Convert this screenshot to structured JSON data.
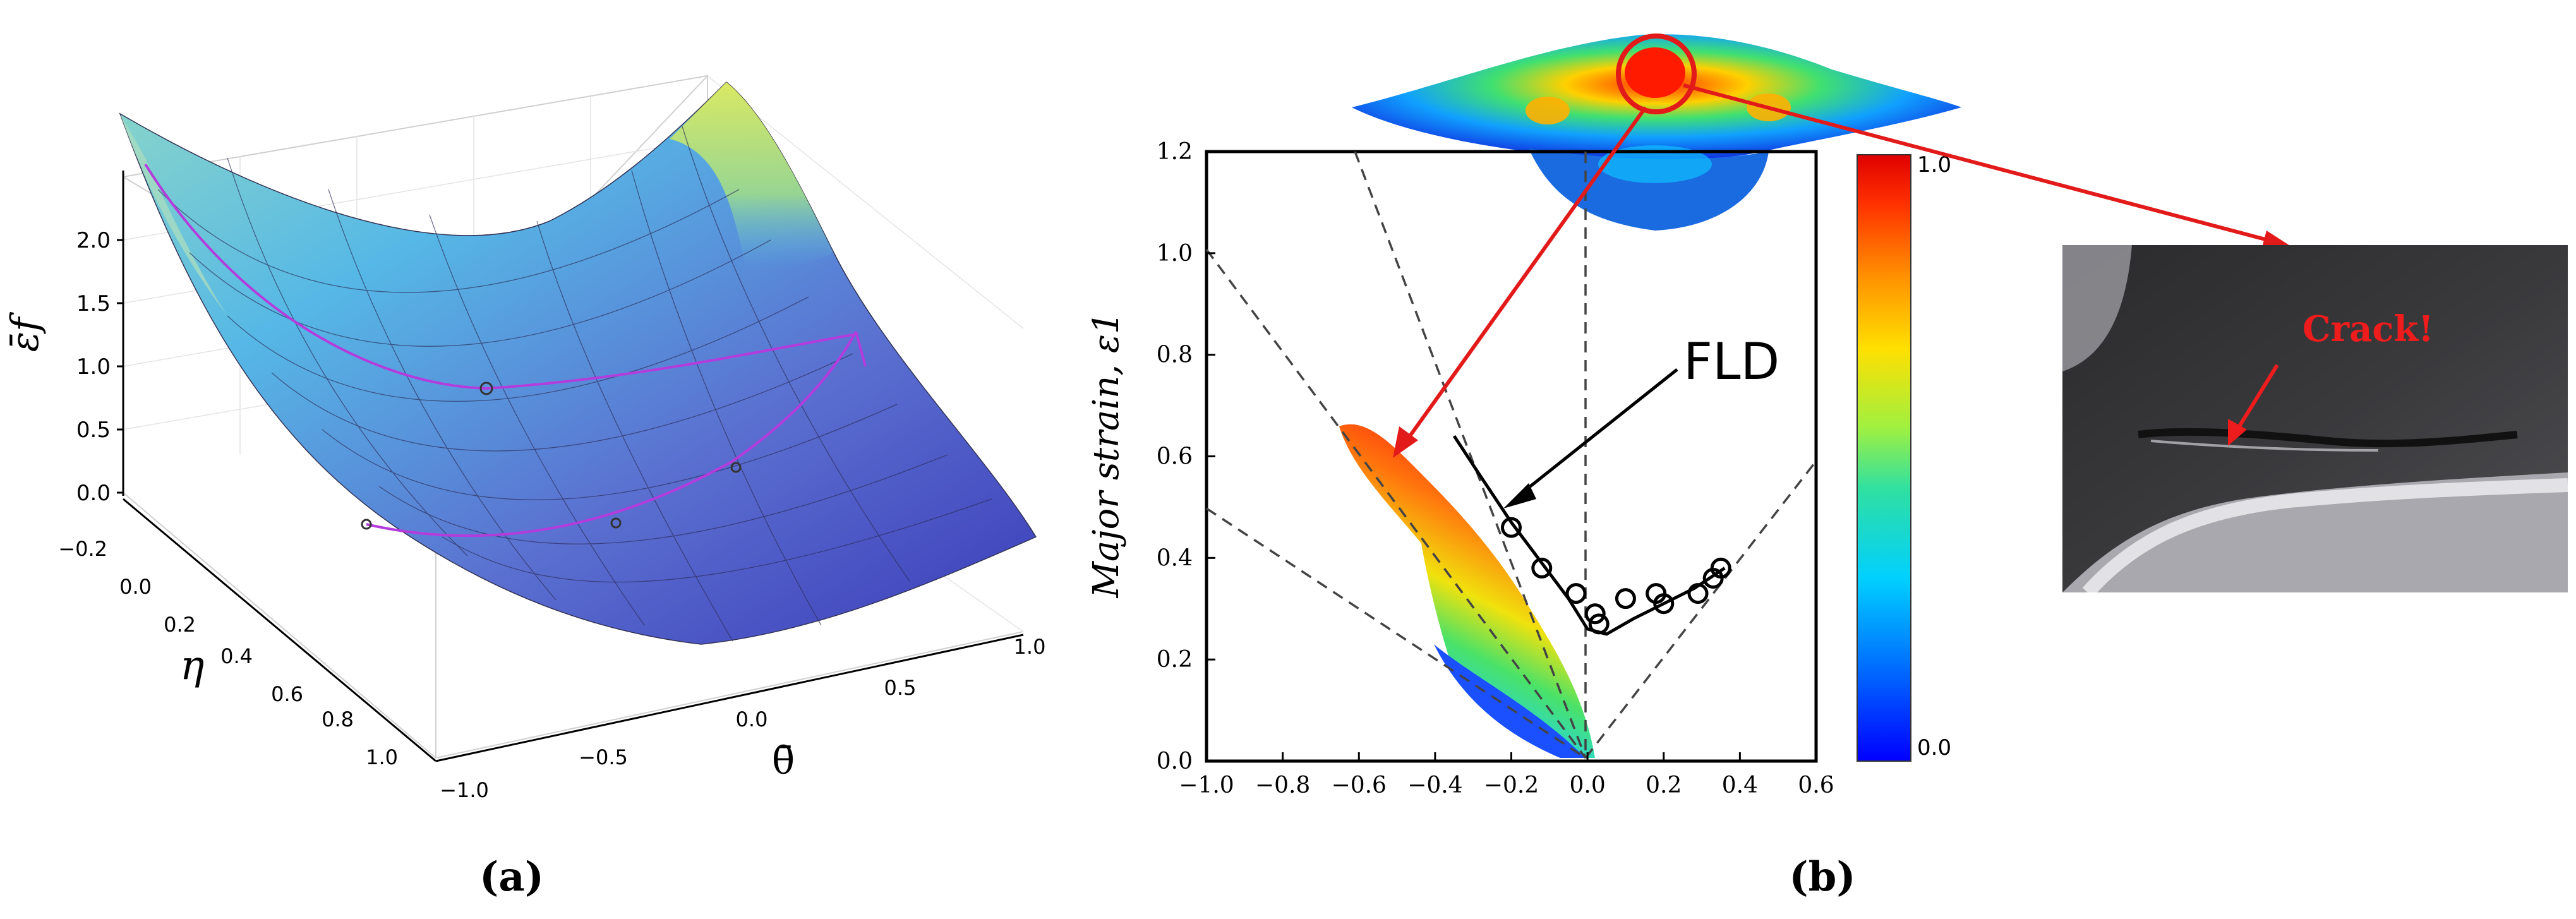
{
  "panel_a": {
    "caption": "(a)",
    "z_axis_label": "ε̄f",
    "z_ticks": [
      "0.0",
      "0.5",
      "1.0",
      "1.5",
      "2.0"
    ],
    "eta_axis_label": "η",
    "eta_ticks": [
      "−0.2",
      "0.0",
      "0.2",
      "0.4",
      "0.6",
      "0.8",
      "1.0"
    ],
    "theta_axis_label": "θ̄",
    "theta_ticks": [
      "−1.0",
      "−0.5",
      "0.0",
      "0.5",
      "1.0"
    ],
    "colors": {
      "surface_high": "#d8ec5a",
      "surface_mid": "#4fbde0",
      "surface_low": "#3f3fbf",
      "curve": "#b43cdc"
    }
  },
  "panel_b": {
    "caption": "(b)",
    "y_axis_label": "Major strain, ε1",
    "fld_label": "FLD",
    "colorbar_max": "1.0",
    "colorbar_min": "0.0",
    "photo_label": "Crack!",
    "chart_data": {
      "type": "scatter",
      "xlim": [
        -1.0,
        0.6
      ],
      "ylim": [
        0.0,
        1.2
      ],
      "x_ticks": [
        "−1.0",
        "−0.8",
        "−0.6",
        "−0.4",
        "−0.2",
        "0.0",
        "0.2",
        "0.4",
        "0.6"
      ],
      "y_ticks": [
        "0.0",
        "0.2",
        "0.4",
        "0.6",
        "0.8",
        "1.0",
        "1.2"
      ],
      "fld_curve": [
        {
          "x": -0.35,
          "y": 0.64
        },
        {
          "x": -0.28,
          "y": 0.56
        },
        {
          "x": -0.2,
          "y": 0.47
        },
        {
          "x": -0.12,
          "y": 0.39
        },
        {
          "x": -0.05,
          "y": 0.32
        },
        {
          "x": 0.0,
          "y": 0.26
        },
        {
          "x": 0.05,
          "y": 0.25
        },
        {
          "x": 0.12,
          "y": 0.28
        },
        {
          "x": 0.2,
          "y": 0.31
        },
        {
          "x": 0.28,
          "y": 0.34
        },
        {
          "x": 0.36,
          "y": 0.38
        }
      ],
      "experimental_points": [
        {
          "x": -0.2,
          "y": 0.46
        },
        {
          "x": -0.12,
          "y": 0.38
        },
        {
          "x": -0.03,
          "y": 0.33
        },
        {
          "x": 0.02,
          "y": 0.29
        },
        {
          "x": 0.03,
          "y": 0.27
        },
        {
          "x": 0.1,
          "y": 0.32
        },
        {
          "x": 0.18,
          "y": 0.33
        },
        {
          "x": 0.2,
          "y": 0.31
        },
        {
          "x": 0.29,
          "y": 0.33
        },
        {
          "x": 0.33,
          "y": 0.36
        },
        {
          "x": 0.35,
          "y": 0.38
        }
      ],
      "colorbar_range": [
        0.0,
        1.0
      ]
    },
    "colors": {
      "arrow": "#e21a1a",
      "ring": "#e21a1a",
      "fld_arrow": "#000000"
    }
  }
}
